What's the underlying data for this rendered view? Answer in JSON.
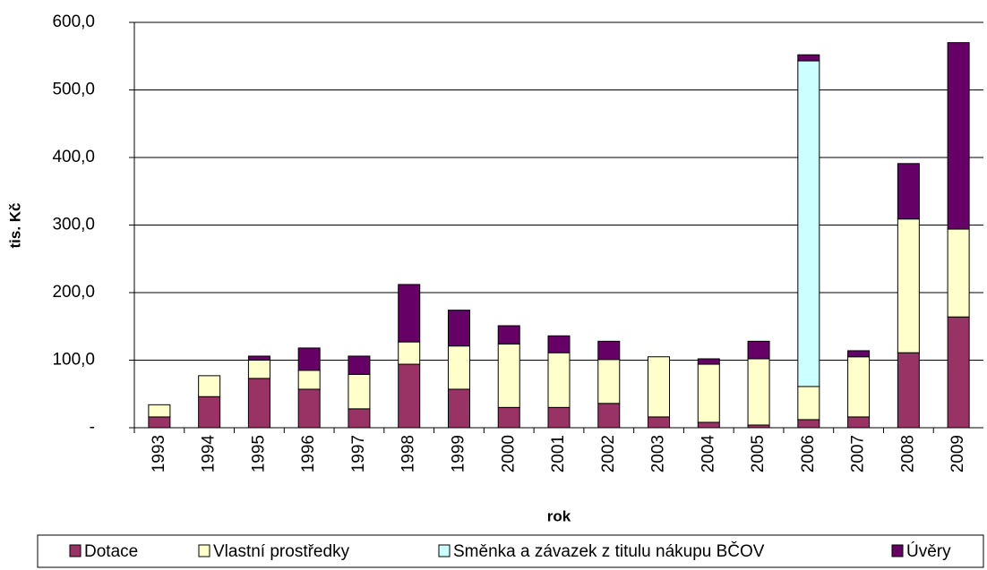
{
  "chart_data": {
    "type": "stacked_bar",
    "y_label": "tis. Kč",
    "x_label": "rok",
    "categories": [
      "1993",
      "1994",
      "1995",
      "1996",
      "1997",
      "1998",
      "1999",
      "2000",
      "2001",
      "2002",
      "2003",
      "2004",
      "2005",
      "2006",
      "2007",
      "2008",
      "2009"
    ],
    "series": [
      {
        "name": "Dotace",
        "color": "#993366",
        "values": [
          16,
          46,
          73,
          57,
          28,
          94,
          57,
          30,
          30,
          36,
          16,
          8,
          4,
          12,
          16,
          111,
          164
        ]
      },
      {
        "name": "Vlastní prostředky",
        "color": "#ffffcc",
        "values": [
          18,
          31,
          27,
          28,
          51,
          33,
          64,
          94,
          81,
          65,
          89,
          86,
          98,
          49,
          89,
          198,
          130
        ]
      },
      {
        "name": "Směnka a závazek z titulu nákupu BČOV",
        "color": "#ccffff",
        "values": [
          0,
          0,
          0,
          0,
          0,
          0,
          0,
          0,
          0,
          0,
          0,
          0,
          0,
          482,
          0,
          0,
          0
        ]
      },
      {
        "name": "Úvěry",
        "color": "#660066",
        "values": [
          0,
          0,
          6,
          33,
          27,
          85,
          53,
          27,
          25,
          27,
          0,
          8,
          26,
          9,
          9,
          82,
          276
        ]
      }
    ],
    "ylim": [
      0,
      600
    ],
    "yticks": [
      {
        "value": 0,
        "label": "-"
      },
      {
        "value": 100,
        "label": "100,0"
      },
      {
        "value": 200,
        "label": "200,0"
      },
      {
        "value": 300,
        "label": "300,0"
      },
      {
        "value": 400,
        "label": "400,0"
      },
      {
        "value": 500,
        "label": "500,0"
      },
      {
        "value": 600,
        "label": "600,0"
      }
    ],
    "grid": true,
    "legend": "bottom"
  }
}
